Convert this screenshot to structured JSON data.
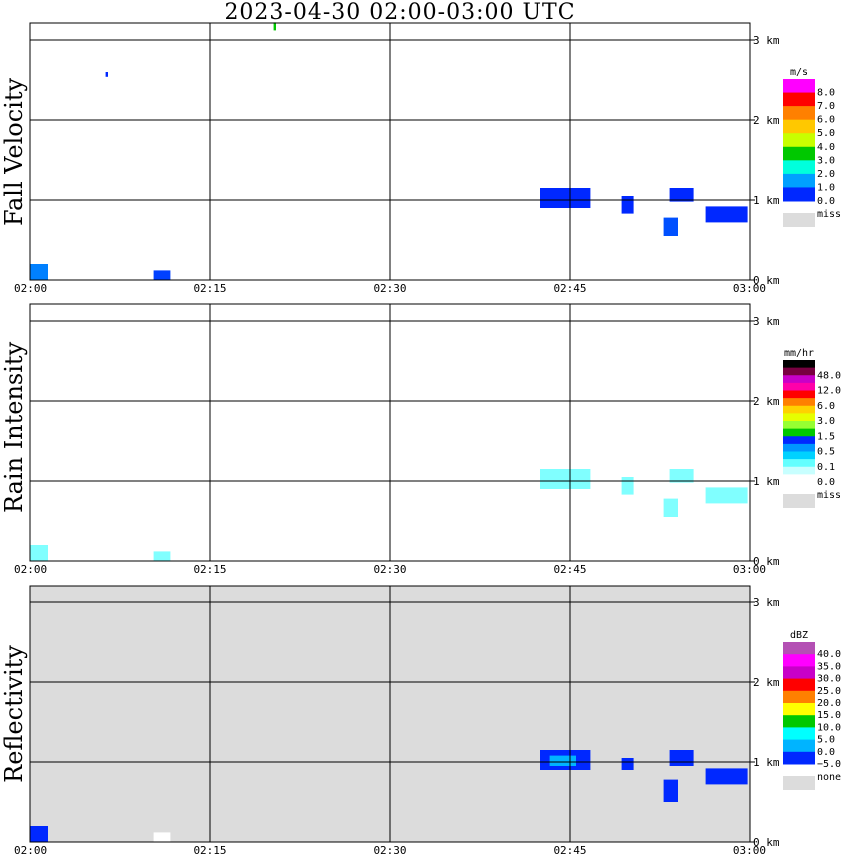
{
  "title": "2023-04-30   02:00-03:00 UTC",
  "x_ticks": [
    "02:00",
    "02:15",
    "02:30",
    "02:45",
    "03:00"
  ],
  "y_ticks": [
    "0 km",
    "1 km",
    "2 km",
    "3 km"
  ],
  "miss_label": "miss",
  "chart_data": [
    {
      "type": "heatmap",
      "ylabel": "Fall Velocity",
      "unit": "m/s",
      "x_range": [
        "02:00",
        "03:00"
      ],
      "ylim": [
        0,
        3.5
      ],
      "grid": true,
      "background": "#ffffff",
      "colorbar": {
        "labels": [
          "8.0",
          "7.0",
          "6.0",
          "5.0",
          "4.0",
          "3.0",
          "2.0",
          "1.0",
          "0.0"
        ],
        "colors": [
          "#ff00ff",
          "#ff0000",
          "#ff8000",
          "#ffc800",
          "#c8ff00",
          "#00c800",
          "#00ffdc",
          "#00a0ff",
          "#0028ff"
        ],
        "missing_label": "miss"
      },
      "echoes": [
        {
          "t_start": 0.0,
          "t_end": 1.5,
          "h_bottom": 0.0,
          "h_top": 0.2,
          "color": "#0080ff"
        },
        {
          "t_start": 10.3,
          "t_end": 11.7,
          "h_bottom": 0.0,
          "h_top": 0.12,
          "color": "#0040ff"
        },
        {
          "t_start": 6.3,
          "t_end": 6.5,
          "h_bottom": 2.54,
          "h_top": 2.6,
          "color": "#0028ff"
        },
        {
          "t_start": 42.5,
          "t_end": 46.7,
          "h_bottom": 0.9,
          "h_top": 1.15,
          "color": "#0028ff"
        },
        {
          "t_start": 49.3,
          "t_end": 50.3,
          "h_bottom": 0.83,
          "h_top": 1.05,
          "color": "#0028ff"
        },
        {
          "t_start": 53.3,
          "t_end": 55.3,
          "h_bottom": 0.98,
          "h_top": 1.15,
          "color": "#0028ff"
        },
        {
          "t_start": 52.8,
          "t_end": 54.0,
          "h_bottom": 0.55,
          "h_top": 0.78,
          "color": "#0050ff"
        },
        {
          "t_start": 56.3,
          "t_end": 59.8,
          "h_bottom": 0.72,
          "h_top": 0.92,
          "color": "#0028ff"
        },
        {
          "t_start": 20.3,
          "t_end": 20.5,
          "h_bottom": 3.12,
          "h_top": 3.22,
          "color": "#00c800"
        }
      ]
    },
    {
      "type": "heatmap",
      "ylabel": "Rain Intensity",
      "unit": "mm/hr",
      "x_range": [
        "02:00",
        "03:00"
      ],
      "ylim": [
        0,
        3.5
      ],
      "grid": true,
      "background": "#ffffff",
      "colorbar": {
        "labels": [
          "48.0",
          "12.0",
          "6.0",
          "3.0",
          "1.5",
          "0.5",
          "0.1",
          "0.0"
        ],
        "colors": [
          "#000000",
          "#780040",
          "#c800c8",
          "#ff00aa",
          "#ff0000",
          "#ff8000",
          "#ffd200",
          "#e6ff00",
          "#96ff32",
          "#00c800",
          "#0028ff",
          "#0096ff",
          "#00d2ff",
          "#64ffff",
          "#c8ffff",
          "#ffffff"
        ],
        "missing_label": "miss"
      },
      "echoes": [
        {
          "t_start": 0.0,
          "t_end": 1.5,
          "h_bottom": 0.0,
          "h_top": 0.2,
          "color": "#80ffff"
        },
        {
          "t_start": 10.3,
          "t_end": 11.7,
          "h_bottom": 0.0,
          "h_top": 0.12,
          "color": "#80ffff"
        },
        {
          "t_start": 42.5,
          "t_end": 46.7,
          "h_bottom": 0.9,
          "h_top": 1.15,
          "color": "#80ffff"
        },
        {
          "t_start": 49.3,
          "t_end": 50.3,
          "h_bottom": 0.83,
          "h_top": 1.05,
          "color": "#80ffff"
        },
        {
          "t_start": 53.3,
          "t_end": 55.3,
          "h_bottom": 0.98,
          "h_top": 1.15,
          "color": "#80ffff"
        },
        {
          "t_start": 52.8,
          "t_end": 54.0,
          "h_bottom": 0.55,
          "h_top": 0.78,
          "color": "#80ffff"
        },
        {
          "t_start": 56.3,
          "t_end": 59.8,
          "h_bottom": 0.72,
          "h_top": 0.92,
          "color": "#80ffff"
        }
      ]
    },
    {
      "type": "heatmap",
      "ylabel": "Reflectivity",
      "unit": "dBZ",
      "x_range": [
        "02:00",
        "03:00"
      ],
      "ylim": [
        0,
        3.5
      ],
      "grid": true,
      "background": "#dcdcdc",
      "colorbar": {
        "labels": [
          "40.0",
          "35.0",
          "30.0",
          "25.0",
          "20.0",
          "15.0",
          "10.0",
          "5.0",
          "0.0",
          "−5.0"
        ],
        "colors": [
          "#b450b4",
          "#ff00ff",
          "#c800c8",
          "#ff0000",
          "#ff8000",
          "#ffff00",
          "#00c800",
          "#00ffff",
          "#00b4ff",
          "#0028ff"
        ],
        "missing_label": "none"
      },
      "echoes": [
        {
          "t_start": 0.0,
          "t_end": 1.5,
          "h_bottom": 0.0,
          "h_top": 0.2,
          "color": "#0028ff"
        },
        {
          "t_start": 10.3,
          "t_end": 11.7,
          "h_bottom": 0.0,
          "h_top": 0.12,
          "color": "#ffffff"
        },
        {
          "t_start": 42.5,
          "t_end": 46.7,
          "h_bottom": 0.9,
          "h_top": 1.15,
          "color": "#0028ff"
        },
        {
          "t_start": 43.3,
          "t_end": 45.5,
          "h_bottom": 0.95,
          "h_top": 1.08,
          "color": "#00b4ff"
        },
        {
          "t_start": 49.3,
          "t_end": 50.3,
          "h_bottom": 0.9,
          "h_top": 1.05,
          "color": "#0028ff"
        },
        {
          "t_start": 53.3,
          "t_end": 55.3,
          "h_bottom": 0.95,
          "h_top": 1.15,
          "color": "#0028ff"
        },
        {
          "t_start": 52.8,
          "t_end": 54.0,
          "h_bottom": 0.5,
          "h_top": 0.78,
          "color": "#0028ff"
        },
        {
          "t_start": 56.3,
          "t_end": 59.8,
          "h_bottom": 0.72,
          "h_top": 0.92,
          "color": "#0028ff"
        }
      ]
    }
  ]
}
